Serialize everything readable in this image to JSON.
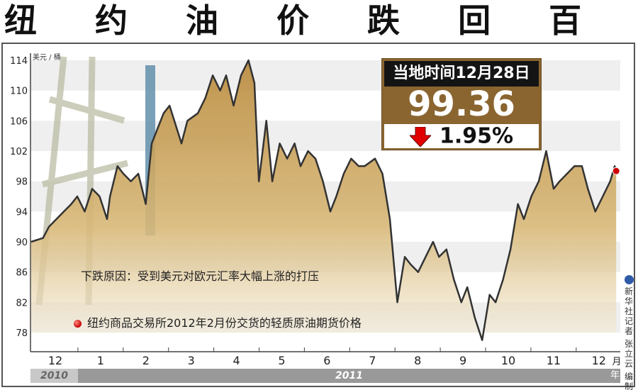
{
  "title": "纽 约 油 价 跌 回 百 元 以 下",
  "infobox": {
    "header": "当地时间12月28日",
    "value": "99.36",
    "change": "1.95%",
    "direction": "down"
  },
  "annotation": "下跌原因：受到美元对欧元汇率大幅上涨的打压",
  "legend_text": "纽约商品交易所2012年2月份交货的轻质原油期货价格",
  "credit": {
    "agency": "新华社记者",
    "author": "张立云",
    "role": "编制"
  },
  "colors": {
    "fill": "#c8a055",
    "line": "#333333",
    "box_brown": "#8a6530",
    "marker": "#cc0000",
    "arrow": "#e00000"
  },
  "chart_data": {
    "type": "area",
    "ylabel": "美元 / 桶",
    "ylim": [
      78,
      114
    ],
    "yticks": [
      114,
      110,
      106,
      102,
      98,
      94,
      90,
      86,
      82,
      78
    ],
    "grid": "alternating horizontal bands",
    "month_labels": [
      "12",
      "1",
      "2",
      "3",
      "4",
      "5",
      "6",
      "7",
      "8",
      "9",
      "10",
      "11",
      "12"
    ],
    "month_unit": "月",
    "year_labels": [
      "2010",
      "2011"
    ],
    "year_unit": "年",
    "series": [
      {
        "points": [
          [
            "2010-11-30",
            90
          ],
          [
            "2010-12-08",
            90.5
          ],
          [
            "2010-12-12",
            92
          ],
          [
            "2010-12-22",
            94
          ],
          [
            "2010-12-27",
            95
          ],
          [
            "2010-12-31",
            96
          ],
          [
            "2011-01-05",
            94
          ],
          [
            "2011-01-10",
            97
          ],
          [
            "2011-01-15",
            96
          ],
          [
            "2011-01-20",
            93
          ],
          [
            "2011-01-22",
            96
          ],
          [
            "2011-01-27",
            100
          ],
          [
            "2011-01-31",
            99
          ],
          [
            "2011-02-05",
            98
          ],
          [
            "2011-02-10",
            99
          ],
          [
            "2011-02-15",
            95
          ],
          [
            "2011-02-19",
            103
          ],
          [
            "2011-02-27",
            107
          ],
          [
            "2011-03-03",
            108
          ],
          [
            "2011-03-11",
            103
          ],
          [
            "2011-03-15",
            106
          ],
          [
            "2011-03-22",
            107
          ],
          [
            "2011-03-27",
            109
          ],
          [
            "2011-04-01",
            112
          ],
          [
            "2011-04-06",
            110
          ],
          [
            "2011-04-10",
            112
          ],
          [
            "2011-04-15",
            108
          ],
          [
            "2011-04-20",
            112
          ],
          [
            "2011-04-25",
            114
          ],
          [
            "2011-04-29",
            111
          ],
          [
            "2011-05-02",
            98
          ],
          [
            "2011-05-07",
            106
          ],
          [
            "2011-05-11",
            98
          ],
          [
            "2011-05-16",
            103
          ],
          [
            "2011-05-21",
            101
          ],
          [
            "2011-05-26",
            103
          ],
          [
            "2011-05-30",
            100
          ],
          [
            "2011-06-04",
            102
          ],
          [
            "2011-06-09",
            101
          ],
          [
            "2011-06-14",
            98
          ],
          [
            "2011-06-19",
            94
          ],
          [
            "2011-06-23",
            96
          ],
          [
            "2011-06-28",
            99
          ],
          [
            "2011-07-03",
            101
          ],
          [
            "2011-07-08",
            100
          ],
          [
            "2011-07-12",
            100
          ],
          [
            "2011-07-19",
            101
          ],
          [
            "2011-07-24",
            99
          ],
          [
            "2011-07-29",
            93
          ],
          [
            "2011-08-03",
            82
          ],
          [
            "2011-08-08",
            88
          ],
          [
            "2011-08-12",
            87
          ],
          [
            "2011-08-17",
            86
          ],
          [
            "2011-08-22",
            88
          ],
          [
            "2011-08-27",
            90
          ],
          [
            "2011-08-31",
            88
          ],
          [
            "2011-09-05",
            89
          ],
          [
            "2011-09-10",
            85
          ],
          [
            "2011-09-15",
            82
          ],
          [
            "2011-09-19",
            84
          ],
          [
            "2011-09-24",
            80
          ],
          [
            "2011-09-29",
            77
          ],
          [
            "2011-10-04",
            83
          ],
          [
            "2011-10-08",
            82
          ],
          [
            "2011-10-13",
            85
          ],
          [
            "2011-10-18",
            89
          ],
          [
            "2011-10-23",
            95
          ],
          [
            "2011-10-27",
            93
          ],
          [
            "2011-11-01",
            96
          ],
          [
            "2011-11-06",
            98
          ],
          [
            "2011-11-11",
            102
          ],
          [
            "2011-11-16",
            97
          ],
          [
            "2011-11-20",
            98
          ],
          [
            "2011-11-25",
            99
          ],
          [
            "2011-11-30",
            100
          ],
          [
            "2011-12-05",
            100
          ],
          [
            "2011-12-09",
            97
          ],
          [
            "2011-12-14",
            94
          ],
          [
            "2011-12-19",
            96
          ],
          [
            "2011-12-24",
            98
          ],
          [
            "2011-12-27",
            100
          ],
          [
            "2011-12-28",
            99.36
          ]
        ]
      }
    ]
  }
}
